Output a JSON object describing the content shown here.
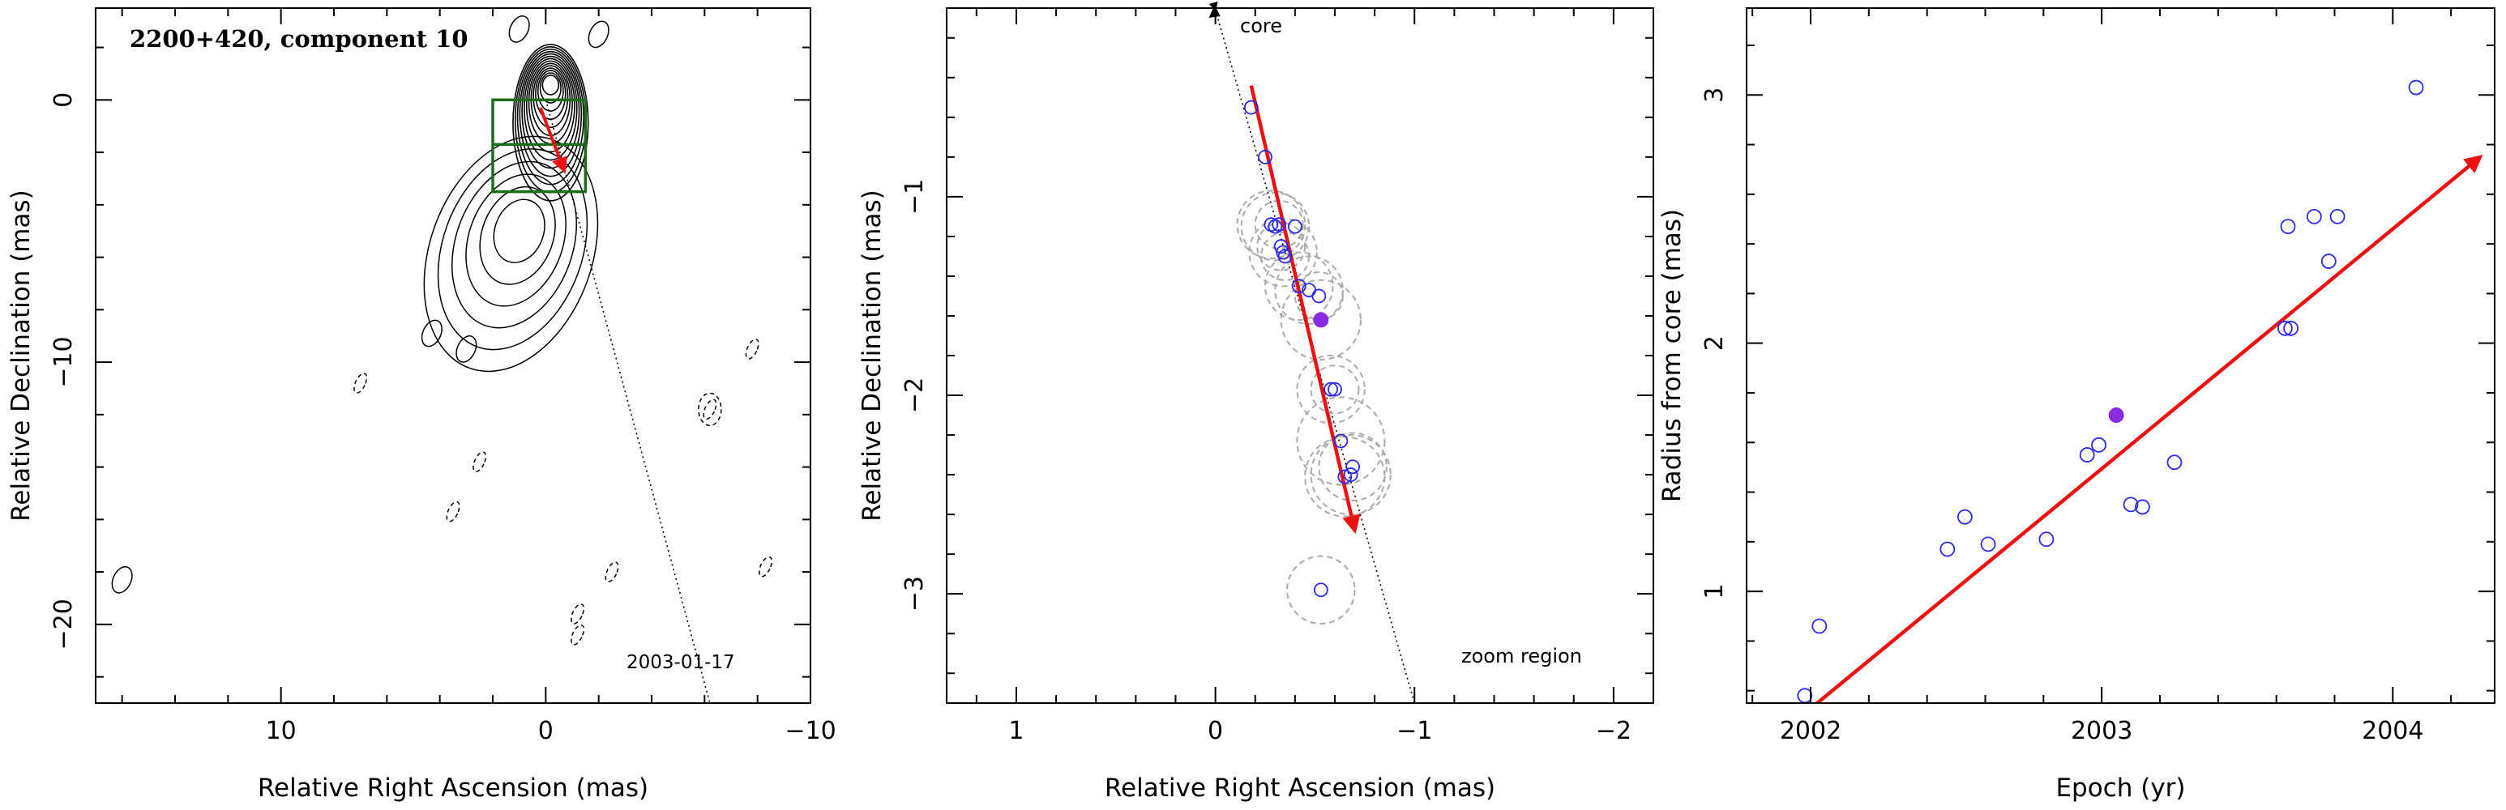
{
  "colors": {
    "axis": "#000000",
    "contour": "#000000",
    "arrow": "#ee1111",
    "box": "#1a6b1a",
    "point_open": "#2a2ae8",
    "point_filled": "#8a2be2",
    "error_circle": "#aaaaaa"
  },
  "chart_data": [
    {
      "type": "contour",
      "title": "2200+420, component 10",
      "annotation": "2003-01-17",
      "xlabel": "Relative Right Ascension (mas)",
      "ylabel": "Relative Declination (mas)",
      "xlim": [
        17,
        -10
      ],
      "ylim": [
        -23,
        3.5
      ],
      "xticks": [
        10,
        0,
        -10
      ],
      "yticks": [
        0,
        -10,
        -20
      ],
      "contour_center": [
        0,
        0
      ],
      "zoom_box": {
        "x": [
          2,
          -1.5
        ],
        "y": [
          -3.5,
          0
        ],
        "midline_y": -1.7
      },
      "trajectory_line": {
        "from": [
          0,
          0
        ],
        "to": [
          -6.2,
          -23
        ]
      },
      "motion_arrow": {
        "from": [
          0.2,
          -0.3
        ],
        "to": [
          -0.7,
          -2.7
        ]
      },
      "isolated_contours": [
        {
          "x": 1,
          "y": -5,
          "note": "jet"
        },
        {
          "x": 16,
          "y": -18.3,
          "style": "solid"
        },
        {
          "x": 4.3,
          "y": -8.9,
          "style": "solid"
        },
        {
          "x": 3,
          "y": -9.5,
          "style": "solid"
        },
        {
          "x": 7,
          "y": -10.8,
          "style": "dashed"
        },
        {
          "x": 2.5,
          "y": -13.8,
          "style": "dashed"
        },
        {
          "x": 3.5,
          "y": -15.7,
          "style": "dashed"
        },
        {
          "x": -2.5,
          "y": -18,
          "style": "dashed"
        },
        {
          "x": -1.2,
          "y": -19.6,
          "style": "dashed"
        },
        {
          "x": -1.2,
          "y": -20.4,
          "style": "dashed"
        },
        {
          "x": -6.2,
          "y": -11.8,
          "style": "dashed"
        },
        {
          "x": -8.3,
          "y": -17.8,
          "style": "dashed"
        },
        {
          "x": -7.8,
          "y": -9.5,
          "style": "dashed"
        },
        {
          "x": 1,
          "y": 2.7,
          "style": "solid"
        },
        {
          "x": -2,
          "y": 2.5,
          "style": "solid"
        }
      ]
    },
    {
      "type": "scatter",
      "xlabel": "Relative Right Ascension (mas)",
      "ylabel": "Relative Declination (mas)",
      "xlim": [
        1.35,
        -2.2
      ],
      "ylim": [
        -3.55,
        -0.05
      ],
      "xticks": [
        1,
        0,
        -1,
        -2
      ],
      "yticks": [
        -1,
        -2,
        -3
      ],
      "core_label": "core",
      "zoom_label": "zoom region",
      "trajectory_line": {
        "from": [
          0,
          -0.05
        ],
        "to": [
          -1,
          -3.55
        ]
      },
      "motion_arrow": {
        "from": [
          -0.18,
          -0.44
        ],
        "to": [
          -0.7,
          -2.68
        ]
      },
      "points": [
        {
          "x": -0.18,
          "y": -0.55,
          "r": 0
        },
        {
          "x": -0.25,
          "y": -0.8,
          "r": 0
        },
        {
          "x": -0.28,
          "y": -1.14,
          "r": 0.17
        },
        {
          "x": -0.3,
          "y": -1.15,
          "r": 0.17
        },
        {
          "x": -0.32,
          "y": -1.14,
          "r": 0.12
        },
        {
          "x": -0.33,
          "y": -1.25,
          "r": 0.12
        },
        {
          "x": -0.34,
          "y": -1.28,
          "r": 0.17
        },
        {
          "x": -0.35,
          "y": -1.3,
          "r": 0.12
        },
        {
          "x": -0.4,
          "y": -1.15,
          "r": 0
        },
        {
          "x": -0.42,
          "y": -1.45,
          "r": 0.17
        },
        {
          "x": -0.47,
          "y": -1.47,
          "r": 0.17
        },
        {
          "x": -0.52,
          "y": -1.5,
          "r": 0.12
        },
        {
          "x": -0.58,
          "y": -1.97,
          "r": 0.17
        },
        {
          "x": -0.6,
          "y": -1.97,
          "r": 0.12
        },
        {
          "x": -0.63,
          "y": -2.23,
          "r": 0.22
        },
        {
          "x": -0.65,
          "y": -2.41,
          "r": 0.2
        },
        {
          "x": -0.68,
          "y": -2.4,
          "r": 0.2
        },
        {
          "x": -0.69,
          "y": -2.36,
          "r": 0.17
        },
        {
          "x": -0.53,
          "y": -2.98,
          "r": 0.17
        }
      ],
      "highlighted_point": {
        "x": -0.53,
        "y": -1.62,
        "r": 0.2
      }
    },
    {
      "type": "scatter",
      "xlabel": "Epoch (yr)",
      "ylabel": "Radius from core (mas)",
      "xlim": [
        2001.78,
        2004.35
      ],
      "ylim": [
        0.55,
        3.35
      ],
      "xticks": [
        2002,
        2003,
        2004
      ],
      "yticks": [
        1,
        2,
        3
      ],
      "fit_arrow": {
        "from": [
          2001.94,
          0.47
        ],
        "to": [
          2004.3,
          2.75
        ]
      },
      "points": [
        {
          "x": 2001.98,
          "y": 0.58
        },
        {
          "x": 2002.03,
          "y": 0.86
        },
        {
          "x": 2002.47,
          "y": 1.17
        },
        {
          "x": 2002.53,
          "y": 1.3
        },
        {
          "x": 2002.61,
          "y": 1.19
        },
        {
          "x": 2002.81,
          "y": 1.21
        },
        {
          "x": 2002.95,
          "y": 1.55
        },
        {
          "x": 2002.99,
          "y": 1.59
        },
        {
          "x": 2003.1,
          "y": 1.35
        },
        {
          "x": 2003.14,
          "y": 1.34
        },
        {
          "x": 2003.25,
          "y": 1.52
        },
        {
          "x": 2003.63,
          "y": 2.06
        },
        {
          "x": 2003.65,
          "y": 2.06
        },
        {
          "x": 2003.64,
          "y": 2.47
        },
        {
          "x": 2003.73,
          "y": 2.51
        },
        {
          "x": 2003.78,
          "y": 2.33
        },
        {
          "x": 2003.81,
          "y": 2.51
        },
        {
          "x": 2004.08,
          "y": 3.03
        }
      ],
      "highlighted_point": {
        "x": 2003.05,
        "y": 1.71
      }
    }
  ]
}
